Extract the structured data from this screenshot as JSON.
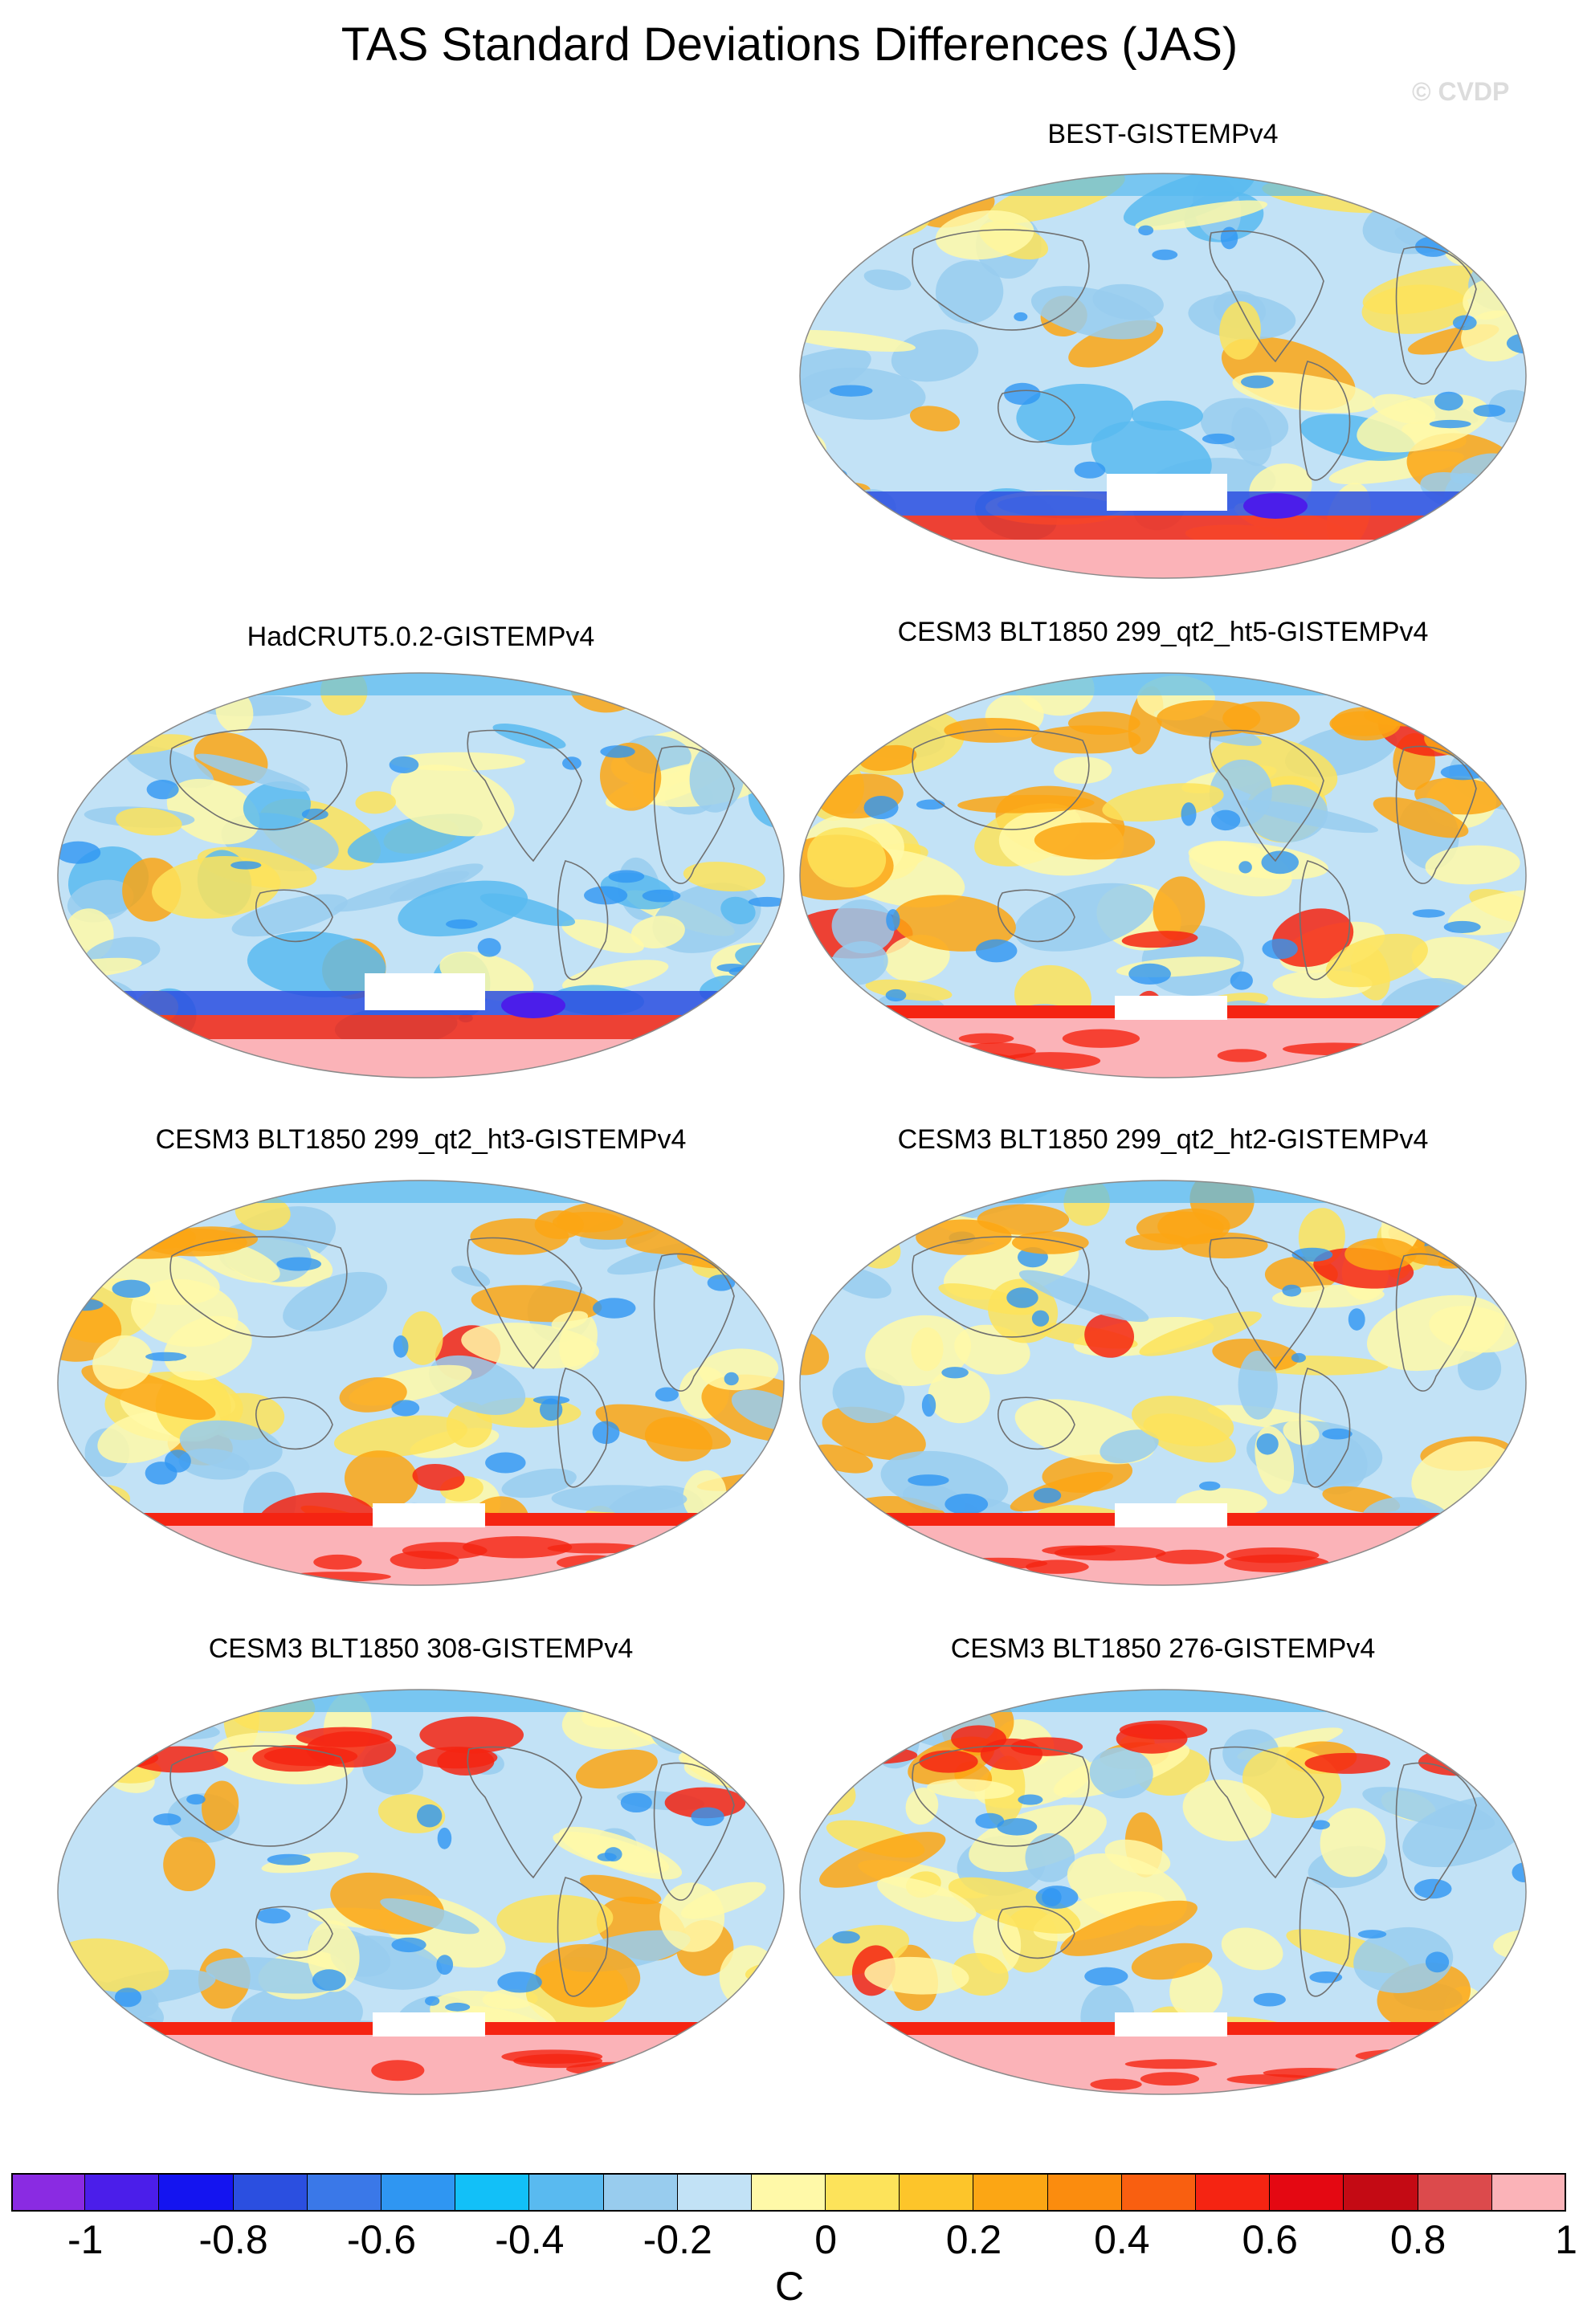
{
  "title": "TAS Standard Deviations Differences (JAS)",
  "watermark": "© CVDP",
  "panels": [
    {
      "title": "BEST-GISTEMPv4",
      "variant": "best",
      "pos": "top-right"
    },
    {
      "title": "HadCRUT5.0.2-GISTEMPv4",
      "variant": "hadcrut",
      "pos": "row2-left"
    },
    {
      "title": "CESM3 BLT1850 299_qt2_ht5-GISTEMPv4",
      "variant": "cesm",
      "pos": "row2-right"
    },
    {
      "title": "CESM3 BLT1850 299_qt2_ht3-GISTEMPv4",
      "variant": "cesm",
      "pos": "row3-left"
    },
    {
      "title": "CESM3 BLT1850 299_qt2_ht2-GISTEMPv4",
      "variant": "cesm",
      "pos": "row3-right"
    },
    {
      "title": "CESM3 BLT1850 308-GISTEMPv4",
      "variant": "cesm-warm",
      "pos": "row4-left"
    },
    {
      "title": "CESM3 BLT1850 276-GISTEMPv4",
      "variant": "cesm-warm",
      "pos": "row4-right"
    }
  ],
  "colorbar": {
    "colors": [
      "#8a2be2",
      "#4b1eea",
      "#1414f0",
      "#2b4fe0",
      "#3a78e8",
      "#2f96f2",
      "#12c0f8",
      "#59baf0",
      "#98ccee",
      "#c2e2f6",
      "#fff9a8",
      "#fde35a",
      "#fdc52a",
      "#fca614",
      "#fb8c0e",
      "#f95f10",
      "#f52412",
      "#e40812",
      "#c40a14",
      "#dc4a4c",
      "#fbb3b8"
    ],
    "tick_labels": [
      "-1",
      "-0.8",
      "-0.6",
      "-0.4",
      "-0.2",
      "0",
      "0.2",
      "0.4",
      "0.6",
      "0.8",
      "1"
    ],
    "units": "C"
  }
}
